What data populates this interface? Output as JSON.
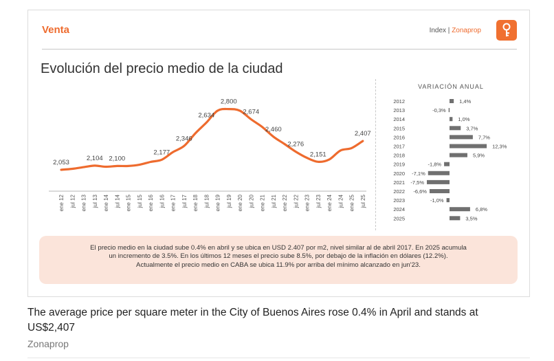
{
  "header": {
    "section": "Venta",
    "brand_prefix": "Index | ",
    "brand_name": "Zonaprop"
  },
  "colors": {
    "accent": "#ee6b2e",
    "line": "#ee6b2e",
    "bar": "#707070",
    "note_bg": "#fbe4da"
  },
  "chart_data": [
    {
      "type": "line",
      "title": "Evolución del precio medio de la ciudad",
      "xlabel": "",
      "ylabel": "",
      "ylim": [
        1900,
        3000
      ],
      "grid": false,
      "x_ticks": [
        "ene 12",
        "jul 12",
        "ene 13",
        "jul 13",
        "ene 14",
        "jul 14",
        "ene 15",
        "jul 15",
        "ene 16",
        "jul 16",
        "ene 17",
        "jul 17",
        "ene 18",
        "jul 18",
        "ene 19",
        "jul 19",
        "ene 20",
        "jul 20",
        "ene 21",
        "jul 21",
        "ene 22",
        "jul 22",
        "ene 23",
        "jul 23",
        "ene 24",
        "jul 24",
        "ene 25",
        "jul 25"
      ],
      "x": [
        "ene 12",
        "jul 12",
        "ene 13",
        "jul 13",
        "ene 14",
        "jul 14",
        "ene 15",
        "jul 15",
        "ene 16",
        "jul 16",
        "ene 17",
        "jul 17",
        "ene 18",
        "jul 18",
        "ene 19",
        "jul 19",
        "ene 20",
        "jul 20",
        "ene 21",
        "jul 21",
        "ene 22",
        "jul 22",
        "ene 23",
        "jul 23",
        "ene 24",
        "jul 24",
        "ene 25",
        "abr 25"
      ],
      "values": [
        2053,
        2065,
        2085,
        2104,
        2090,
        2100,
        2100,
        2115,
        2150,
        2177,
        2270,
        2346,
        2500,
        2634,
        2780,
        2800,
        2780,
        2674,
        2580,
        2460,
        2370,
        2276,
        2200,
        2151,
        2180,
        2290,
        2320,
        2407
      ],
      "data_labels": [
        {
          "x": "ene 12",
          "label": "2,053"
        },
        {
          "x": "jul 13",
          "label": "2,104"
        },
        {
          "x": "jul 14",
          "label": "2,100"
        },
        {
          "x": "jul 16",
          "label": "2,177"
        },
        {
          "x": "jul 17",
          "label": "2,346"
        },
        {
          "x": "jul 18",
          "label": "2,634"
        },
        {
          "x": "jul 19",
          "label": "2,800"
        },
        {
          "x": "jul 20",
          "label": "2,674"
        },
        {
          "x": "jul 21",
          "label": "2,460"
        },
        {
          "x": "jul 22",
          "label": "2,276"
        },
        {
          "x": "jul 23",
          "label": "2,151"
        },
        {
          "x": "abr 25",
          "label": "2,407"
        }
      ]
    },
    {
      "type": "bar",
      "title": "VARIACIÓN ANUAL",
      "orientation": "horizontal",
      "categories": [
        "2012",
        "2013",
        "2014",
        "2015",
        "2016",
        "2017",
        "2018",
        "2019",
        "2020",
        "2021",
        "2022",
        "2023",
        "2024",
        "2025"
      ],
      "values": [
        1.4,
        -0.3,
        1.0,
        3.7,
        7.7,
        12.3,
        5.9,
        -1.8,
        -7.1,
        -7.5,
        -6.6,
        -1.0,
        6.8,
        3.5
      ],
      "labels": [
        "1,4%",
        "-0,3%",
        "1,0%",
        "3,7%",
        "7,7%",
        "12,3%",
        "5,9%",
        "-1,8%",
        "-7,1%",
        "-7,5%",
        "-6,6%",
        "-1,0%",
        "6,8%",
        "3,5%"
      ],
      "xlim": [
        -8,
        13
      ]
    }
  ],
  "note": {
    "line1": "El precio medio en la ciudad sube 0.4% en abril y se ubica en USD 2.407 por m2, nivel similar al de abril 2017. En 2025 acumula",
    "line2": "un incremento de 3.5%.  En los últimos 12 meses el precio sube 8.5%, por debajo de la inflación en dólares (12.2%).",
    "line3": "Actualmente el precio medio en CABA se ubica 11.9% por arriba del mínimo alcanzado en jun'23."
  },
  "caption": "The average price per square meter in the City of Buenos Aires rose 0.4% in April and stands at US$2,407",
  "source": "Zonaprop"
}
